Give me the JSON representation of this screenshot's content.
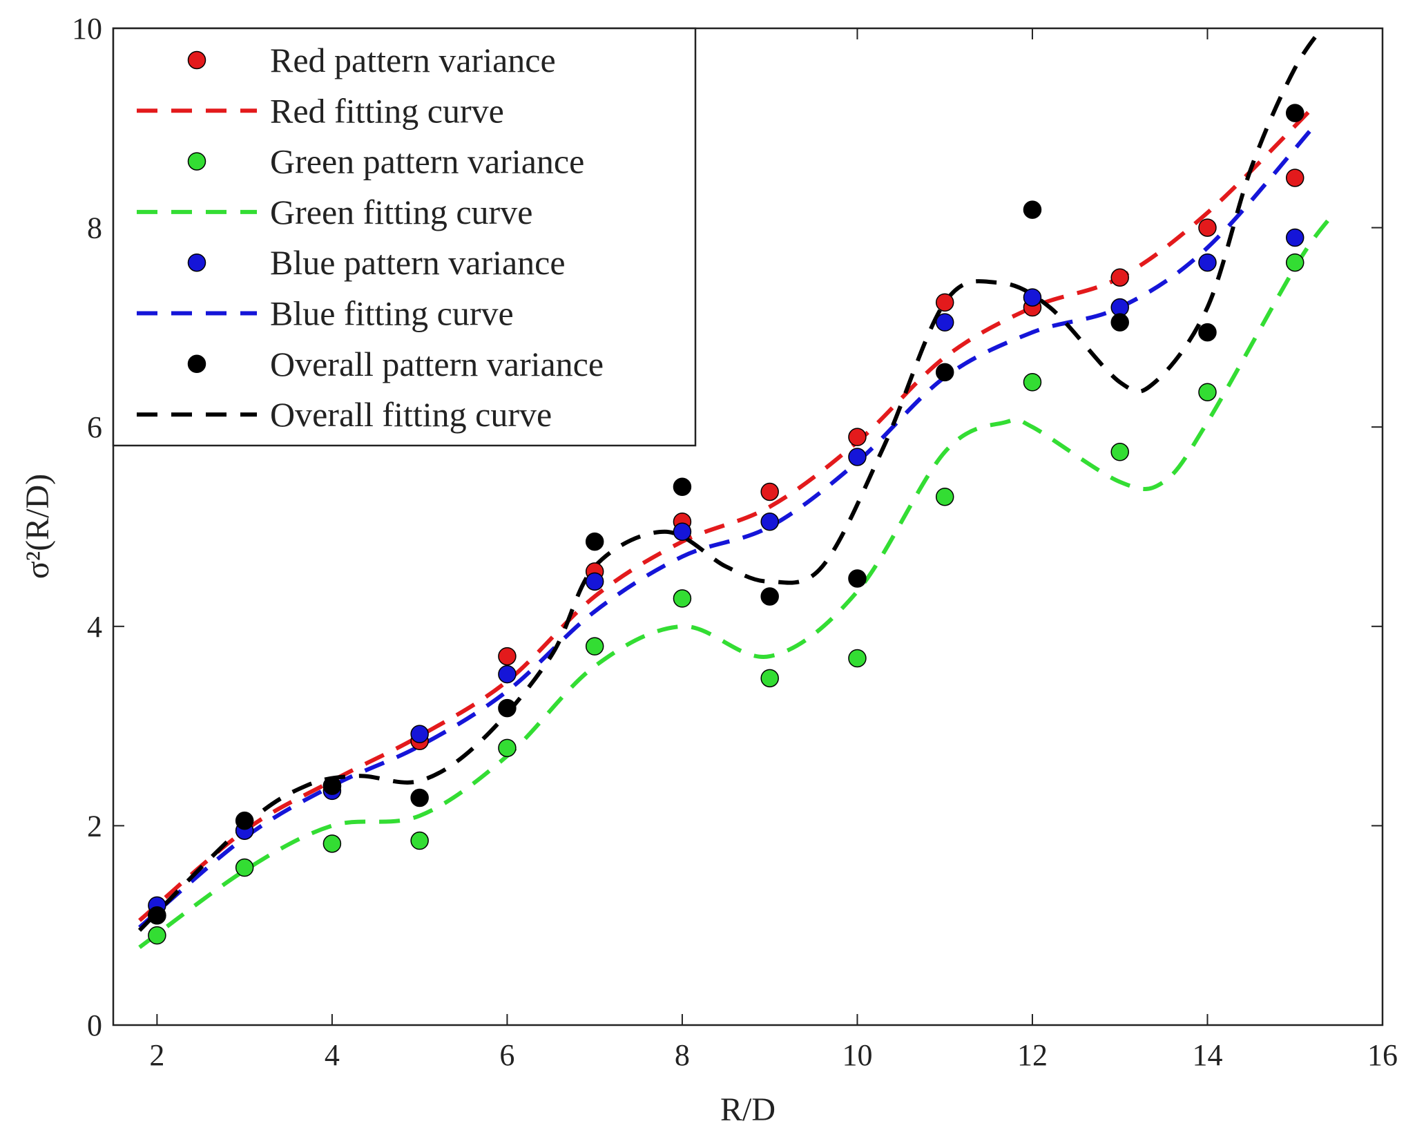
{
  "chart_data": {
    "type": "scatter",
    "title": "",
    "xlabel": "R/D",
    "ylabel": "σ²(R/D)",
    "xlim": [
      1.5,
      16
    ],
    "ylim": [
      0,
      10
    ],
    "xticks": [
      2,
      4,
      6,
      8,
      10,
      12,
      14,
      16
    ],
    "yticks": [
      0,
      2,
      4,
      6,
      8,
      10
    ],
    "grid": false,
    "legend_position": "top-left",
    "x": [
      2,
      3,
      4,
      5,
      6,
      7,
      8,
      9,
      10,
      11,
      12,
      13,
      14,
      15
    ],
    "series": [
      {
        "name": "Red pattern variance",
        "kind": "points",
        "color": "#e31a1c",
        "values": [
          1.1,
          1.95,
          2.4,
          2.85,
          3.7,
          4.55,
          5.05,
          5.35,
          5.9,
          7.25,
          7.2,
          7.5,
          8.0,
          8.5
        ]
      },
      {
        "name": "Red fitting curve",
        "kind": "curve",
        "color": "#e31a1c",
        "x": [
          1.8,
          3,
          4,
          5,
          6,
          7,
          8,
          9,
          10,
          11,
          12,
          13,
          14,
          15.2
        ],
        "values": [
          1.05,
          1.95,
          2.45,
          2.9,
          3.45,
          4.3,
          4.85,
          5.2,
          5.85,
          6.7,
          7.2,
          7.5,
          8.15,
          9.2
        ]
      },
      {
        "name": "Green pattern variance",
        "kind": "points",
        "color": "#33dd33",
        "values": [
          0.9,
          1.58,
          1.82,
          1.85,
          2.78,
          3.8,
          4.28,
          3.48,
          3.68,
          5.3,
          6.45,
          5.75,
          6.35,
          7.65
        ]
      },
      {
        "name": "Green fitting curve",
        "kind": "curve",
        "color": "#33dd33",
        "x": [
          1.8,
          3,
          4,
          5,
          6,
          7,
          8,
          9,
          10,
          11,
          11.7,
          12,
          13,
          13.5,
          14,
          15,
          15.4
        ],
        "values": [
          0.78,
          1.55,
          2.0,
          2.1,
          2.7,
          3.6,
          4.0,
          3.7,
          4.35,
          5.75,
          6.05,
          6.0,
          5.45,
          5.45,
          6.05,
          7.6,
          8.1
        ]
      },
      {
        "name": "Blue pattern variance",
        "kind": "points",
        "color": "#1515d8",
        "values": [
          1.2,
          1.95,
          2.35,
          2.92,
          3.52,
          4.45,
          4.95,
          5.05,
          5.7,
          7.05,
          7.3,
          7.2,
          7.65,
          7.9
        ]
      },
      {
        "name": "Blue fitting curve",
        "kind": "curve",
        "color": "#1515d8",
        "x": [
          1.8,
          3,
          4,
          5,
          6,
          7,
          8,
          9,
          10,
          11,
          12,
          13,
          14,
          15.2
        ],
        "values": [
          0.98,
          1.88,
          2.4,
          2.8,
          3.35,
          4.15,
          4.7,
          5.0,
          5.65,
          6.5,
          6.95,
          7.2,
          7.8,
          9.0
        ]
      },
      {
        "name": "Overall pattern variance",
        "kind": "points",
        "color": "#000000",
        "values": [
          1.1,
          2.05,
          2.4,
          2.28,
          3.18,
          4.85,
          5.4,
          4.3,
          4.48,
          6.55,
          8.18,
          7.05,
          6.95,
          9.15
        ]
      },
      {
        "name": "Overall fitting curve",
        "kind": "curve",
        "color": "#000000",
        "x": [
          1.8,
          3,
          3.7,
          4.3,
          5,
          5.7,
          6.5,
          7,
          7.8,
          8.5,
          9,
          9.6,
          10.3,
          11,
          11.6,
          12.2,
          13,
          13.4,
          14,
          14.5,
          15,
          15.4
        ],
        "values": [
          0.95,
          2.0,
          2.4,
          2.5,
          2.45,
          2.85,
          3.7,
          4.6,
          4.95,
          4.6,
          4.45,
          4.6,
          5.8,
          7.25,
          7.45,
          7.2,
          6.45,
          6.45,
          7.2,
          8.6,
          9.6,
          10.1
        ]
      }
    ]
  }
}
